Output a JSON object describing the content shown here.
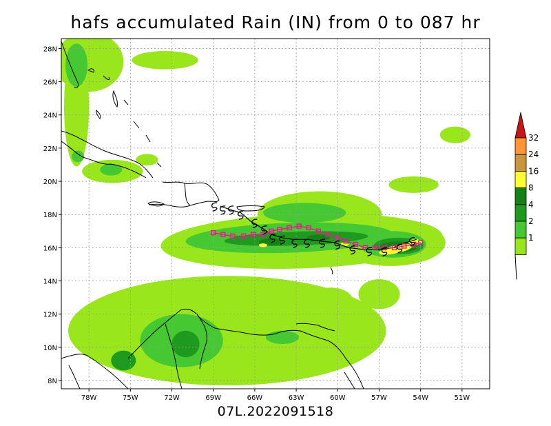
{
  "title": "hafs accumulated Rain (IN) from 0 to 087 hr",
  "footer": "07L.2022091518",
  "chart_data": {
    "type": "heatmap",
    "title": "hafs accumulated Rain (IN) from 0 to 087 hr",
    "units": "IN",
    "xlim": [
      -80,
      -49
    ],
    "ylim": [
      7.5,
      28.6
    ],
    "x_ticks": [
      {
        "value": -78,
        "label": "78W"
      },
      {
        "value": -75,
        "label": "75W"
      },
      {
        "value": -72,
        "label": "72W"
      },
      {
        "value": -69,
        "label": "69W"
      },
      {
        "value": -66,
        "label": "66W"
      },
      {
        "value": -63,
        "label": "63W"
      },
      {
        "value": -60,
        "label": "60W"
      },
      {
        "value": -57,
        "label": "57W"
      },
      {
        "value": -54,
        "label": "54W"
      },
      {
        "value": -51,
        "label": "51W"
      }
    ],
    "y_ticks": [
      {
        "value": 8,
        "label": "8N"
      },
      {
        "value": 10,
        "label": "10N"
      },
      {
        "value": 12,
        "label": "12N"
      },
      {
        "value": 14,
        "label": "14N"
      },
      {
        "value": 16,
        "label": "16N"
      },
      {
        "value": 18,
        "label": "18N"
      },
      {
        "value": 20,
        "label": "20N"
      },
      {
        "value": 22,
        "label": "22N"
      },
      {
        "value": 24,
        "label": "24N"
      },
      {
        "value": 26,
        "label": "26N"
      },
      {
        "value": 28,
        "label": "28N"
      }
    ],
    "grid": true,
    "colorbar": {
      "placement": "right",
      "levels": [
        {
          "label": "1",
          "color": "#9ae61c"
        },
        {
          "label": "2",
          "color": "#46c832"
        },
        {
          "label": "4",
          "color": "#1e9b1e"
        },
        {
          "label": "8",
          "color": "#148214"
        },
        {
          "label": "16",
          "color": "#ffff32"
        },
        {
          "label": "24",
          "color": "#c8963c"
        },
        {
          "label": "32",
          "color": "#ff9632"
        }
      ],
      "top_color": "#c81414"
    },
    "rain_regions": [
      {
        "level": 1,
        "shape": "ellipse",
        "cx": -62.6,
        "cy": 16.4,
        "rx": 10.2,
        "ry": 1.65,
        "rot": -2
      },
      {
        "level": 1,
        "shape": "ellipse",
        "cx": -61.3,
        "cy": 18.0,
        "rx": 4.5,
        "ry": 1.4,
        "rot": 0
      },
      {
        "level": 1,
        "shape": "ellipse",
        "cx": -56.2,
        "cy": 16.3,
        "rx": 4.0,
        "ry": 1.4,
        "rot": 0
      },
      {
        "level": 1,
        "shape": "ellipse",
        "cx": -68.0,
        "cy": 11.0,
        "rx": 11.5,
        "ry": 3.3,
        "rot": 0
      },
      {
        "level": 1,
        "shape": "ellipse",
        "cx": -78.0,
        "cy": 27.2,
        "rx": 2.5,
        "ry": 1.8,
        "rot": 0
      },
      {
        "level": 1,
        "shape": "ellipse",
        "cx": -78.9,
        "cy": 24.5,
        "rx": 0.9,
        "ry": 3.6,
        "rot": 0
      },
      {
        "level": 1,
        "shape": "ellipse",
        "cx": -72.5,
        "cy": 27.3,
        "rx": 2.4,
        "ry": 0.55,
        "rot": 0
      },
      {
        "level": 1,
        "shape": "ellipse",
        "cx": -51.5,
        "cy": 22.8,
        "rx": 1.1,
        "ry": 0.5,
        "rot": 0
      },
      {
        "level": 1,
        "shape": "ellipse",
        "cx": -54.5,
        "cy": 19.8,
        "rx": 1.8,
        "ry": 0.5,
        "rot": 0
      },
      {
        "level": 1,
        "shape": "ellipse",
        "cx": -76.3,
        "cy": 20.6,
        "rx": 2.2,
        "ry": 0.7,
        "rot": 0
      },
      {
        "level": 1,
        "shape": "ellipse",
        "cx": -73.8,
        "cy": 21.3,
        "rx": 0.8,
        "ry": 0.35,
        "rot": 0
      },
      {
        "level": 1,
        "shape": "ellipse",
        "cx": -57.0,
        "cy": 13.2,
        "rx": 1.5,
        "ry": 0.9,
        "rot": 0
      },
      {
        "level": 1,
        "shape": "ellipse",
        "cx": -60.5,
        "cy": 12.8,
        "rx": 1.6,
        "ry": 0.8,
        "rot": 0
      },
      {
        "level": 2,
        "shape": "ellipse",
        "cx": -63.5,
        "cy": 16.6,
        "rx": 7.5,
        "ry": 0.9,
        "rot": -2
      },
      {
        "level": 2,
        "shape": "ellipse",
        "cx": -56.0,
        "cy": 16.2,
        "rx": 2.4,
        "ry": 0.8,
        "rot": 0
      },
      {
        "level": 2,
        "shape": "ellipse",
        "cx": -62.4,
        "cy": 18.1,
        "rx": 3.0,
        "ry": 0.6,
        "rot": 0
      },
      {
        "level": 2,
        "shape": "ellipse",
        "cx": -71.3,
        "cy": 10.4,
        "rx": 3.0,
        "ry": 1.6,
        "rot": 0
      },
      {
        "level": 2,
        "shape": "ellipse",
        "cx": -78.9,
        "cy": 27.0,
        "rx": 0.8,
        "ry": 1.3,
        "rot": 0
      },
      {
        "level": 2,
        "shape": "ellipse",
        "cx": -76.4,
        "cy": 20.7,
        "rx": 0.8,
        "ry": 0.35,
        "rot": 0
      },
      {
        "level": 2,
        "shape": "ellipse",
        "cx": -78.8,
        "cy": 21.5,
        "rx": 0.45,
        "ry": 0.35,
        "rot": 0
      },
      {
        "level": 2,
        "shape": "ellipse",
        "cx": -64.0,
        "cy": 10.6,
        "rx": 1.2,
        "ry": 0.4,
        "rot": 0
      },
      {
        "level": 4,
        "shape": "ellipse",
        "cx": -63.0,
        "cy": 16.55,
        "rx": 5.2,
        "ry": 0.42,
        "rot": -2
      },
      {
        "level": 4,
        "shape": "ellipse",
        "cx": -55.6,
        "cy": 16.1,
        "rx": 1.8,
        "ry": 0.5,
        "rot": 0
      },
      {
        "level": 4,
        "shape": "ellipse",
        "cx": -71.0,
        "cy": 10.2,
        "rx": 1.0,
        "ry": 0.8,
        "rot": 0
      },
      {
        "level": 4,
        "shape": "ellipse",
        "cx": -75.5,
        "cy": 9.2,
        "rx": 0.9,
        "ry": 0.6,
        "rot": 0
      },
      {
        "level": 8,
        "shape": "ellipse",
        "cx": -64.8,
        "cy": 16.35,
        "rx": 0.9,
        "ry": 0.2,
        "rot": 0
      },
      {
        "level": 8,
        "shape": "ellipse",
        "cx": -61.4,
        "cy": 16.6,
        "rx": 0.8,
        "ry": 0.2,
        "rot": 0
      },
      {
        "level": 8,
        "shape": "ellipse",
        "cx": -55.6,
        "cy": 16.05,
        "rx": 1.4,
        "ry": 0.32,
        "rot": 0
      },
      {
        "level": 16,
        "shape": "ellipse",
        "cx": -55.8,
        "cy": 15.9,
        "rx": 1.25,
        "ry": 0.24,
        "rot": -12
      },
      {
        "level": 16,
        "shape": "ellipse",
        "cx": -54.4,
        "cy": 16.35,
        "rx": 0.5,
        "ry": 0.16,
        "rot": 0
      },
      {
        "level": 16,
        "shape": "ellipse",
        "cx": -65.4,
        "cy": 16.15,
        "rx": 0.3,
        "ry": 0.11,
        "rot": 0
      },
      {
        "level": 16,
        "shape": "ellipse",
        "cx": -59.5,
        "cy": 16.2,
        "rx": 0.3,
        "ry": 0.11,
        "rot": 0
      }
    ],
    "track_black": [
      [
        -68.5,
        18.5
      ],
      [
        -67.8,
        18.3
      ],
      [
        -67.0,
        18.1
      ],
      [
        -66.3,
        17.6
      ],
      [
        -65.5,
        17.2
      ],
      [
        -64.8,
        16.8
      ],
      [
        -64.0,
        16.6
      ],
      [
        -63.2,
        16.5
      ],
      [
        -62.2,
        16.5
      ],
      [
        -61.2,
        16.4
      ],
      [
        -60.2,
        16.3
      ],
      [
        -59.2,
        16.0
      ],
      [
        -58.2,
        15.9
      ],
      [
        -57.0,
        15.9
      ],
      [
        -56.0,
        16.0
      ],
      [
        -55.1,
        16.3
      ],
      [
        -54.3,
        16.5
      ]
    ],
    "track_magenta": [
      [
        -69.0,
        16.9
      ],
      [
        -68.3,
        16.8
      ],
      [
        -67.6,
        16.7
      ],
      [
        -66.8,
        16.7
      ],
      [
        -66.1,
        16.8
      ],
      [
        -65.4,
        16.8
      ],
      [
        -64.8,
        17.0
      ],
      [
        -64.2,
        17.1
      ],
      [
        -63.5,
        17.2
      ],
      [
        -62.8,
        17.3
      ],
      [
        -62.1,
        17.2
      ],
      [
        -61.4,
        17.0
      ],
      [
        -60.7,
        16.8
      ],
      [
        -60.0,
        16.6
      ],
      [
        -59.4,
        16.4
      ],
      [
        -58.7,
        16.2
      ],
      [
        -58.0,
        16.0
      ],
      [
        -57.3,
        16.0
      ],
      [
        -56.6,
        16.0
      ],
      [
        -55.9,
        16.0
      ],
      [
        -55.2,
        16.1
      ],
      [
        -54.5,
        16.2
      ],
      [
        -54.0,
        16.3
      ]
    ],
    "storm_symbol_positions": [
      [
        -68.9,
        18.5
      ],
      [
        -68.3,
        18.3
      ],
      [
        -67.7,
        18.3
      ],
      [
        -67.0,
        18.0
      ],
      [
        -66.0,
        17.5
      ],
      [
        -65.3,
        17.1
      ],
      [
        -64.7,
        16.6
      ],
      [
        -64.0,
        16.5
      ],
      [
        -63.1,
        16.3
      ],
      [
        -62.2,
        16.3
      ],
      [
        -61.1,
        16.3
      ],
      [
        -60.0,
        16.2
      ],
      [
        -58.9,
        15.9
      ],
      [
        -57.7,
        15.8
      ],
      [
        -56.6,
        15.8
      ],
      [
        -55.5,
        16.0
      ],
      [
        -54.6,
        16.4
      ]
    ],
    "track_colors": {
      "black": "#000000",
      "magenta": "#e61e8c"
    }
  }
}
